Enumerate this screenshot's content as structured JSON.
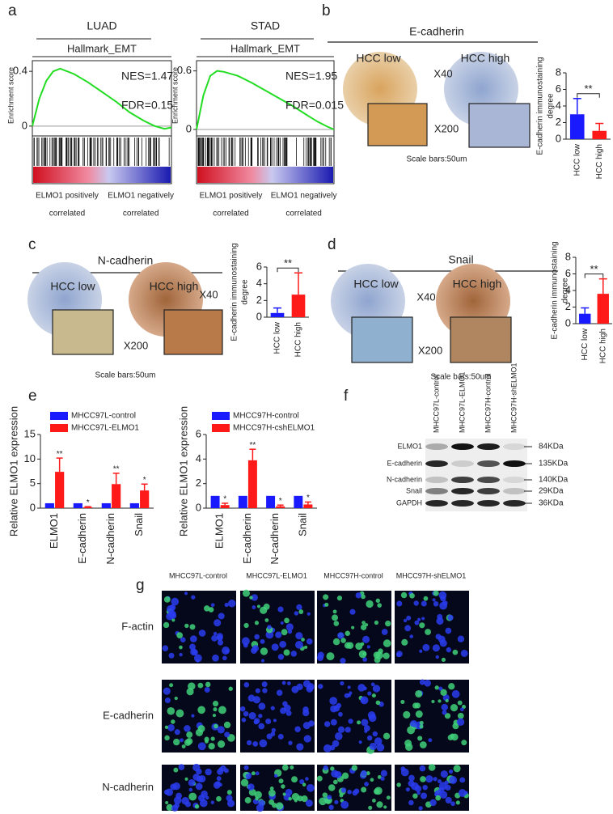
{
  "panel_labels": [
    "a",
    "b",
    "c",
    "d",
    "e",
    "f",
    "g"
  ],
  "ihc": [
    {
      "title": "E-cadherin",
      "low": "HCC low",
      "high": "HCC high",
      "zoom_low": "X40",
      "zoom_high": "X200",
      "scale": "Scale bars:50um"
    },
    {
      "title": "N-cadherin",
      "low": "HCC low",
      "high": "HCC high",
      "zoom_low": "X40",
      "zoom_high": "X200",
      "scale": "Scale bars:50um"
    },
    {
      "title": "Snail",
      "low": "HCC low",
      "high": "HCC high",
      "zoom_low": "X40",
      "zoom_high": "X200",
      "scale": "Scale bars:50um"
    }
  ],
  "western": {
    "columns": [
      "MHCC97L-control",
      "MHCC97L-ELMO1",
      "MHCC97H-control",
      "MHCC97H-shELMO1"
    ],
    "rows": [
      {
        "name": "ELMO1",
        "size": "84KDa"
      },
      {
        "name": "E-cadherin",
        "size": "135KDa"
      },
      {
        "name": "N-cadherin",
        "size": "140KDa"
      },
      {
        "name": "Snail",
        "size": "29KDa"
      },
      {
        "name": "GAPDH",
        "size": "36KDa"
      }
    ]
  },
  "immunofluorescence": {
    "columns": [
      "MHCC97L-control",
      "MHCC97L-ELMO1",
      "MHCC97H-control",
      "MHCC97H-shELMO1"
    ],
    "rows": [
      "F-actin",
      "E-cadherin",
      "N-cadherin"
    ]
  },
  "chart_data": [
    {
      "type": "line",
      "title": "LUAD",
      "subtitle": "Hallmark_EMT",
      "annotations": [
        "NES=1.47",
        "FDR=0.15"
      ],
      "y_label": "Enrichment score",
      "x_labels": [
        {
          "top": "ELMO1 positively",
          "bottom": "correlated"
        },
        {
          "top": "ELMO1 negatively",
          "bottom": "correlated"
        }
      ],
      "x": [
        0,
        5,
        10,
        15,
        20,
        30,
        40,
        50,
        60,
        70,
        80,
        88,
        95,
        100
      ],
      "values": [
        0,
        0.2,
        0.33,
        0.4,
        0.42,
        0.38,
        0.32,
        0.25,
        0.18,
        0.1,
        0.04,
        0,
        -0.02,
        -0.01
      ],
      "color": "#22dd22",
      "xlim": [
        0,
        100
      ],
      "ylim": [
        -0.06,
        0.46
      ],
      "yticks": [
        0,
        0.4
      ]
    },
    {
      "type": "line",
      "title": "STAD",
      "subtitle": "Hallmark_EMT",
      "annotations": [
        "NES=1.95",
        "FDR=0.015"
      ],
      "y_label": "Enrichment score",
      "x_labels": [
        {
          "top": "ELMO1 positively",
          "bottom": "correlated"
        },
        {
          "top": "ELMO1 negatively",
          "bottom": "correlated"
        }
      ],
      "x": [
        0,
        5,
        10,
        15,
        20,
        30,
        40,
        50,
        60,
        70,
        80,
        88,
        95,
        100
      ],
      "values": [
        0,
        0.35,
        0.55,
        0.6,
        0.59,
        0.55,
        0.48,
        0.4,
        0.32,
        0.24,
        0.15,
        0.08,
        0.03,
        0
      ],
      "color": "#22dd22",
      "xlim": [
        0,
        100
      ],
      "ylim": [
        -0.05,
        0.68
      ],
      "yticks": [
        0,
        0.6
      ]
    },
    {
      "type": "bar",
      "y_label": [
        "E-cadherin immunostaining",
        "degree"
      ],
      "categories": [
        "HCC low",
        "HCC high"
      ],
      "values": [
        3.0,
        1.0
      ],
      "errors": [
        1.9,
        0.9
      ],
      "colors": [
        "#1a1aff",
        "#ff1a1a"
      ],
      "annotations": [
        "**"
      ],
      "ylim": [
        0,
        8
      ],
      "yticks": [
        0,
        2,
        4,
        6,
        8
      ]
    },
    {
      "type": "bar",
      "y_label": [
        "E-cadherin immunostaining",
        "degree"
      ],
      "categories": [
        "HCC low",
        "HCC high"
      ],
      "values": [
        0.5,
        2.7
      ],
      "errors": [
        0.6,
        2.6
      ],
      "colors": [
        "#1a1aff",
        "#ff1a1a"
      ],
      "annotations": [
        "**"
      ],
      "ylim": [
        0,
        6
      ],
      "yticks": [
        0,
        2,
        4,
        6
      ]
    },
    {
      "type": "bar",
      "y_label": [
        "E-cadherin immunostaining",
        "degree"
      ],
      "categories": [
        "HCC low",
        "HCC high"
      ],
      "values": [
        1.2,
        3.6
      ],
      "errors": [
        0.7,
        1.8
      ],
      "colors": [
        "#1a1aff",
        "#ff1a1a"
      ],
      "annotations": [
        "**"
      ],
      "ylim": [
        0,
        8
      ],
      "yticks": [
        0,
        2,
        4,
        6,
        8
      ]
    },
    {
      "type": "grouped_bar",
      "y_label": [
        "Relative ELMO1 expression"
      ],
      "categories": [
        "ELMO1",
        "E-cadherin",
        "N-cadherin",
        "Snail"
      ],
      "series": [
        {
          "name": "MHCC97L-control",
          "color": "#1a1aff",
          "values": [
            1,
            1,
            1,
            1
          ]
        },
        {
          "name": "MHCC97L-ELMO1",
          "color": "#ff1a1a",
          "values": [
            7.4,
            0.2,
            4.9,
            3.6
          ],
          "errors": [
            2.8,
            0.1,
            2.2,
            1.3
          ],
          "annotations": [
            "**",
            "*",
            "**",
            "*"
          ]
        }
      ],
      "ylim": [
        0,
        15
      ],
      "yticks": [
        0,
        5,
        10,
        15
      ]
    },
    {
      "type": "grouped_bar",
      "y_label": [
        "Relative ELMO1 expression"
      ],
      "categories": [
        "ELMO1",
        "E-cadherin",
        "N-cadherin",
        "Snail"
      ],
      "series": [
        {
          "name": "MHCC97H-control",
          "color": "#1a1aff",
          "values": [
            1,
            1,
            1,
            1
          ]
        },
        {
          "name": "MHCC97H-cshELMO1",
          "color": "#ff1a1a",
          "values": [
            0.25,
            3.9,
            0.15,
            0.3
          ],
          "errors": [
            0.15,
            0.9,
            0.1,
            0.2
          ],
          "annotations": [
            "*",
            "**",
            "*",
            "*"
          ]
        }
      ],
      "ylim": [
        0,
        6
      ],
      "yticks": [
        0,
        2,
        4,
        6
      ]
    }
  ]
}
